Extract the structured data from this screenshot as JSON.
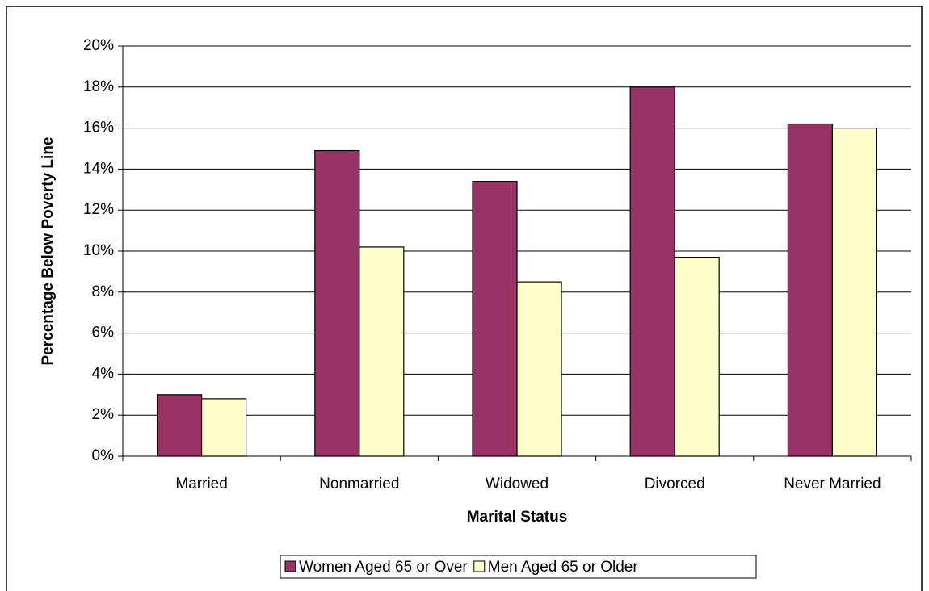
{
  "chart_data": {
    "type": "bar",
    "x_label": "Marital Status",
    "y_label": "Percentage Below Poverty Line",
    "categories": [
      "Married",
      "Nonmarried",
      "Widowed",
      "Divorced",
      "Never Married"
    ],
    "series": [
      {
        "name": "Women Aged 65 or Over",
        "color": "#993366",
        "values": [
          3.0,
          14.9,
          13.4,
          18.0,
          16.2
        ]
      },
      {
        "name": "Men Aged 65 or Older",
        "color": "#ffffcc",
        "values": [
          2.8,
          10.2,
          8.5,
          9.7,
          16.0
        ]
      }
    ],
    "ylim": [
      0,
      20
    ],
    "yticks": [
      {
        "value": 0,
        "label": "0%"
      },
      {
        "value": 2,
        "label": "2%"
      },
      {
        "value": 4,
        "label": "4%"
      },
      {
        "value": 6,
        "label": "6%"
      },
      {
        "value": 8,
        "label": "8%"
      },
      {
        "value": 10,
        "label": "10%"
      },
      {
        "value": 12,
        "label": "12%"
      },
      {
        "value": 14,
        "label": "14%"
      },
      {
        "value": 16,
        "label": "16%"
      },
      {
        "value": 18,
        "label": "18%"
      },
      {
        "value": 20,
        "label": "20%"
      }
    ],
    "grid": true,
    "legend": "bottom"
  }
}
